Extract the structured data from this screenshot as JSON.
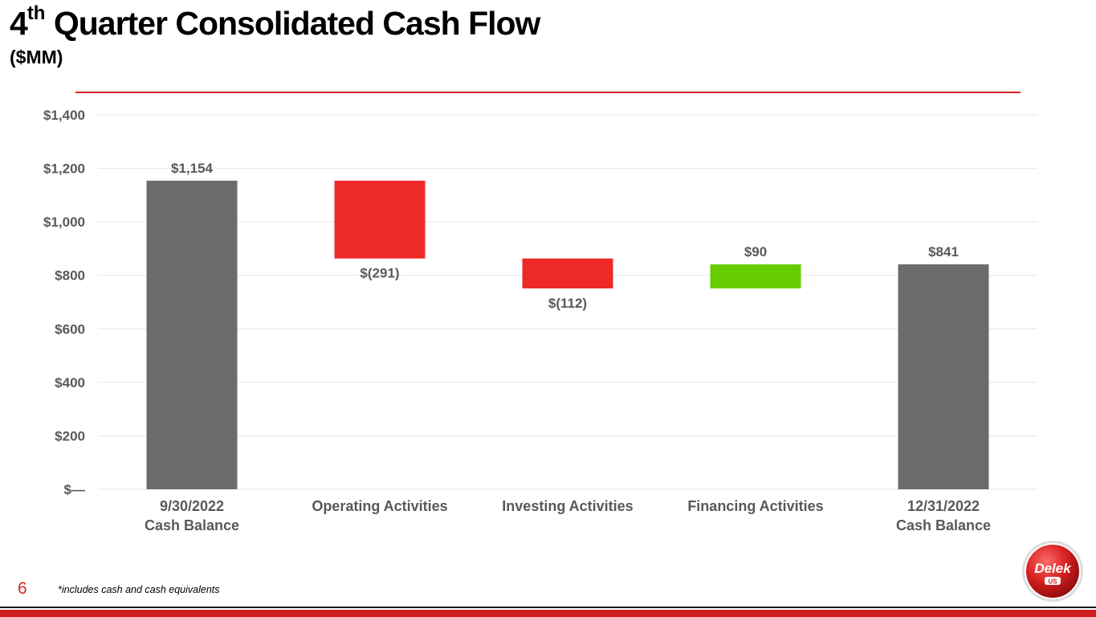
{
  "title": {
    "main_prefix": "4",
    "superscript": "th",
    "main_rest": " Quarter Consolidated Cash Flow",
    "units": "($MM)"
  },
  "colors": {
    "accent_red": "#d42424",
    "start_end_bar": "#6b6b6b",
    "decrease_bar": "#ee2a28",
    "increase_bar": "#66cc00",
    "label_gray": "#595959",
    "grid": "#e6e6e6"
  },
  "chart_data": {
    "type": "bar",
    "subtype": "waterfall",
    "title": "4th Quarter Consolidated Cash Flow",
    "ylabel": "($MM)",
    "categories": [
      "9/30/2022\nCash Balance",
      "Operating Activities",
      "Investing Activities",
      "Financing Activities",
      "12/31/2022\nCash Balance"
    ],
    "steps": [
      {
        "kind": "total",
        "value": 1154,
        "label": "$1,154"
      },
      {
        "kind": "change",
        "value": -291,
        "label": "$(291)"
      },
      {
        "kind": "change",
        "value": -112,
        "label": "$(112)"
      },
      {
        "kind": "change",
        "value": 90,
        "label": "$90"
      },
      {
        "kind": "total",
        "value": 841,
        "label": "$841"
      }
    ],
    "ylim": [
      0,
      1400
    ],
    "yticks": [
      0,
      200,
      400,
      600,
      800,
      1000,
      1200,
      1400
    ],
    "ytick_labels": [
      "$—",
      "$200",
      "$400",
      "$600",
      "$800",
      "$1,000",
      "$1,200",
      "$1,400"
    ],
    "grid": true
  },
  "footer": {
    "page_number": "6",
    "footnote": "*includes cash and cash equivalents"
  },
  "logo": {
    "text": "Delek",
    "badge": "US"
  }
}
